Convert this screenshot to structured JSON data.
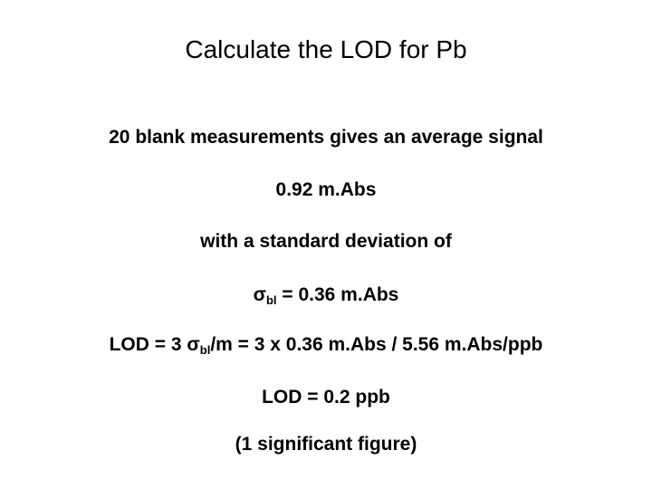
{
  "slide": {
    "title": "Calculate the LOD for Pb",
    "line_blank": "20 blank measurements gives an average signal",
    "line_average": "0.92 m.Abs",
    "line_stddev_intro": "with a standard deviation of",
    "sigma_eq": {
      "symbol": "σ",
      "sub": "bl",
      "rest": " = 0.36 m.Abs"
    },
    "lod_formula": {
      "prefix": "LOD = 3 σ",
      "sub": "bl",
      "rest": "/m = 3 x 0.36 m.Abs / 5.56 m.Abs/ppb"
    },
    "lod_result": "LOD = 0.2 ppb",
    "sig_fig_note": "(1 significant figure)"
  }
}
